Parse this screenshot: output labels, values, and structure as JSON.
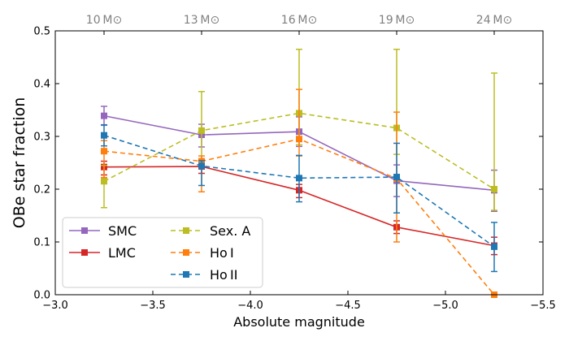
{
  "chart_data": {
    "type": "line",
    "title": "",
    "xlabel": "Absolute magnitude",
    "ylabel": "OBe star fraction",
    "xlim": [
      -3.0,
      -5.5
    ],
    "ylim": [
      0.0,
      0.5
    ],
    "x_ticks": [
      -3.0,
      -3.5,
      -4.0,
      -4.5,
      -5.0,
      -5.5
    ],
    "x_tick_labels": [
      "−3.0",
      "−3.5",
      "−4.0",
      "−4.5",
      "−5.0",
      "−5.5"
    ],
    "y_ticks": [
      0.0,
      0.1,
      0.2,
      0.3,
      0.4,
      0.5
    ],
    "y_tick_labels": [
      "0.0",
      "0.1",
      "0.2",
      "0.3",
      "0.4",
      "0.5"
    ],
    "top_axis": {
      "positions": [
        -3.25,
        -3.75,
        -4.25,
        -4.75,
        -5.25
      ],
      "labels": [
        "10 M⊙",
        "13 M⊙",
        "16 M⊙",
        "19 M⊙",
        "24 M⊙"
      ]
    },
    "x": [
      -3.25,
      -3.75,
      -4.25,
      -4.75,
      -5.25
    ],
    "legend": {
      "location": "lower-left",
      "columns": 2
    },
    "series": [
      {
        "name": "SMC",
        "color": "#9467bd",
        "linestyle": "solid",
        "values": [
          0.339,
          0.303,
          0.309,
          0.216,
          0.198
        ],
        "err_low": [
          0.018,
          0.023,
          0.028,
          0.03,
          0.04
        ],
        "err_high": [
          0.018,
          0.02,
          0.028,
          0.03,
          0.038
        ]
      },
      {
        "name": "LMC",
        "color": "#d62728",
        "linestyle": "solid",
        "values": [
          0.242,
          0.243,
          0.198,
          0.128,
          0.093
        ],
        "err_low": [
          0.015,
          0.013,
          0.014,
          0.012,
          0.017
        ],
        "err_high": [
          0.011,
          0.011,
          0.011,
          0.012,
          0.016
        ]
      },
      {
        "name": "Sex. A",
        "color": "#bcbd22",
        "linestyle": "dashed",
        "values": [
          0.215,
          0.311,
          0.344,
          0.316,
          0.2
        ],
        "err_low": [
          0.05,
          0.07,
          0.06,
          0.05,
          0.04
        ],
        "err_high": [
          0.03,
          0.074,
          0.121,
          0.149,
          0.22
        ]
      },
      {
        "name": "Ho I",
        "color": "#ff7f0e",
        "linestyle": "dashed",
        "values": [
          0.272,
          0.253,
          0.295,
          0.22,
          0.0
        ],
        "err_low": [
          0.05,
          0.058,
          0.032,
          0.12,
          0.0
        ],
        "err_high": [
          0.02,
          0.01,
          0.094,
          0.126,
          0.0
        ]
      },
      {
        "name": "Ho II",
        "color": "#1f77b4",
        "linestyle": "dashed",
        "values": [
          0.302,
          0.244,
          0.221,
          0.223,
          0.091
        ],
        "err_low": [
          0.02,
          0.037,
          0.045,
          0.068,
          0.047
        ],
        "err_high": [
          0.02,
          0.01,
          0.043,
          0.064,
          0.046
        ]
      }
    ]
  }
}
